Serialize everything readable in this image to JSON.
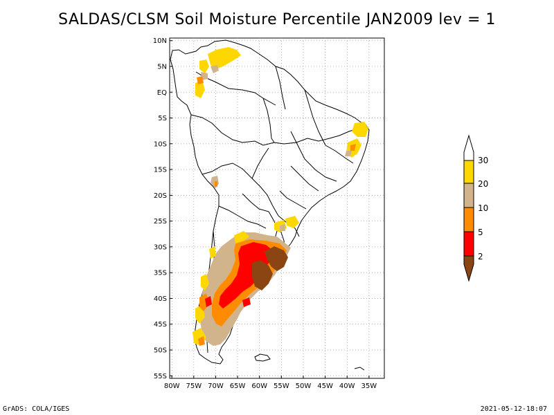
{
  "title": "SALDAS/CLSM Soil Moisture Percentile JAN2009 lev = 1",
  "map": {
    "lat_ticks": [
      "10N",
      "5N",
      "EQ",
      "5S",
      "10S",
      "15S",
      "20S",
      "25S",
      "30S",
      "35S",
      "40S",
      "45S",
      "50S",
      "55S"
    ],
    "lon_ticks": [
      "80W",
      "75W",
      "70W",
      "65W",
      "60W",
      "55W",
      "50W",
      "45W",
      "40W",
      "35W"
    ],
    "lat_range": [
      -55.5,
      10.5
    ],
    "lon_range": [
      -80.5,
      -31.5
    ]
  },
  "colorbar": {
    "levels": [
      "2",
      "5",
      "10",
      "20",
      "30"
    ],
    "colors": {
      "lt2": "#8b4513",
      "2to5": "#ff0000",
      "5to10": "#ff8c00",
      "10to20": "#d2b48c",
      "20to30": "#ffd700",
      "gt30": "#ffffff"
    }
  },
  "footer": {
    "left": "GrADS: COLA/IGES",
    "right": "2021-05-12-18:07"
  }
}
